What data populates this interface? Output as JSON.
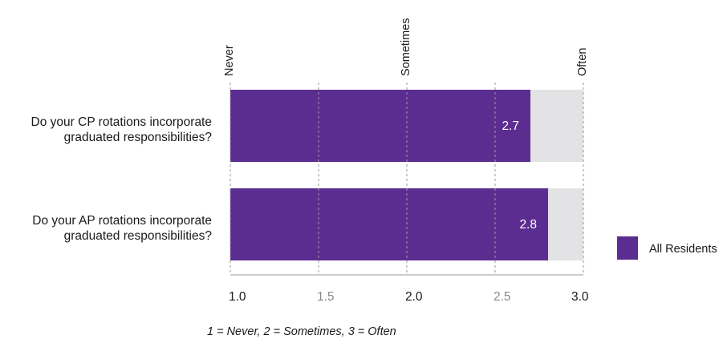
{
  "chart_data": {
    "type": "bar",
    "orientation": "horizontal",
    "categories": [
      [
        "Do your CP rotations incorporate",
        "graduated responsibilities?"
      ],
      [
        "Do your AP rotations incorporate",
        "graduated responsibilities?"
      ]
    ],
    "series": [
      {
        "name": "All Residents",
        "values": [
          2.7,
          2.8
        ],
        "value_labels": [
          "2.7",
          "2.8"
        ],
        "color": "#5c2d91"
      }
    ],
    "background_bar_color": "#e3e3e6",
    "xlim": [
      1.0,
      3.0
    ],
    "x_ticks": [
      {
        "value": 1.0,
        "label": "1.0",
        "color": "#1a1a1a"
      },
      {
        "value": 1.5,
        "label": "1.5",
        "color": "#8a8a8a"
      },
      {
        "value": 2.0,
        "label": "2.0",
        "color": "#1a1a1a"
      },
      {
        "value": 2.5,
        "label": "2.5",
        "color": "#8a8a8a"
      },
      {
        "value": 3.0,
        "label": "3.0",
        "color": "#1a1a1a"
      }
    ],
    "scale_labels": [
      {
        "value": 1.0,
        "label": "Never"
      },
      {
        "value": 2.0,
        "label": "Sometimes"
      },
      {
        "value": 3.0,
        "label": "Often"
      }
    ],
    "grid": true,
    "grid_color": "#9a9a9a",
    "legend": {
      "placement": "right",
      "entries": [
        "All Residents"
      ]
    },
    "note": "1 = Never, 2 = Sometimes, 3 = Often"
  }
}
